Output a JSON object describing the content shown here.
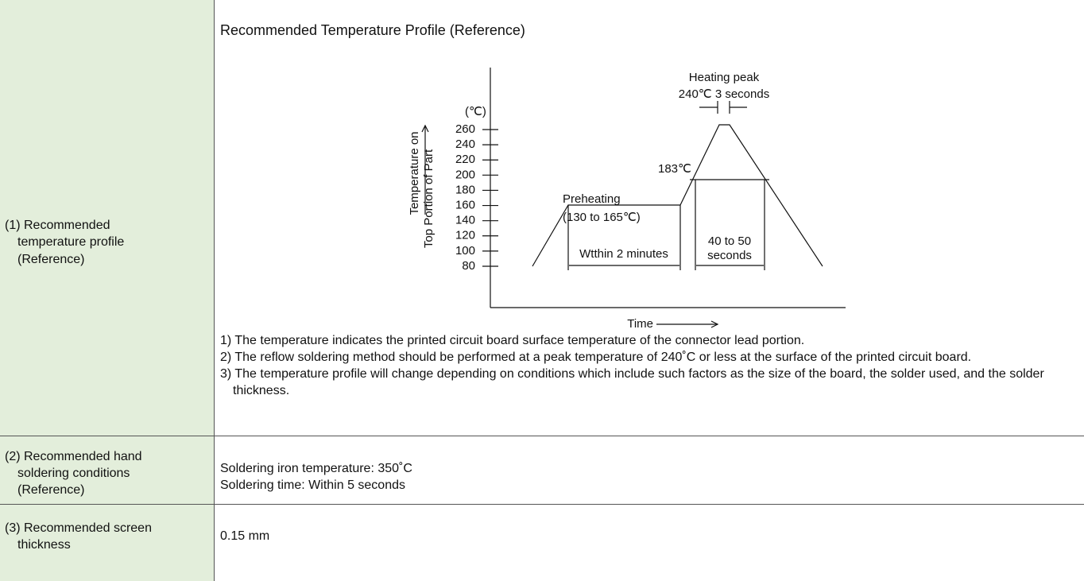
{
  "rows": [
    {
      "label": [
        "(1) Recommended",
        "temperature profile",
        "(Reference)"
      ],
      "heading": "Recommended Temperature Profile (Reference)",
      "diagram": {
        "y_unit": "(℃)",
        "y_axis_label": [
          "Temperature on",
          "Top Portion of Part"
        ],
        "yticks": [
          260,
          240,
          220,
          200,
          180,
          160,
          140,
          120,
          100,
          80
        ],
        "x_axis_label": "Time",
        "peak_label": [
          "Heating peak",
          "240℃ 3 seconds"
        ],
        "melt_label": "183℃",
        "preheat_label": [
          "Preheating",
          "(130 to 165℃)"
        ],
        "preheat_time": "Wtthin 2 minutes",
        "melt_time": [
          "40 to 50",
          "seconds"
        ]
      },
      "notes": [
        "1) The temperature indicates the printed circuit board surface temperature of the connector lead portion.",
        "2) The reflow soldering method should be performed at a peak temperature of 240˚C or less at the surface of the printed circuit board.",
        "3) The temperature profile will change depending on conditions which include such factors as the size of the board, the solder used, and the solder thickness."
      ]
    },
    {
      "label": [
        "(2) Recommended hand",
        "soldering conditions",
        "(Reference)"
      ],
      "content": [
        "Soldering iron temperature: 350˚C",
        "Soldering time: Within 5 seconds"
      ]
    },
    {
      "label": [
        "(3) Recommended screen",
        "thickness"
      ],
      "content": [
        "0.15 mm"
      ]
    }
  ]
}
